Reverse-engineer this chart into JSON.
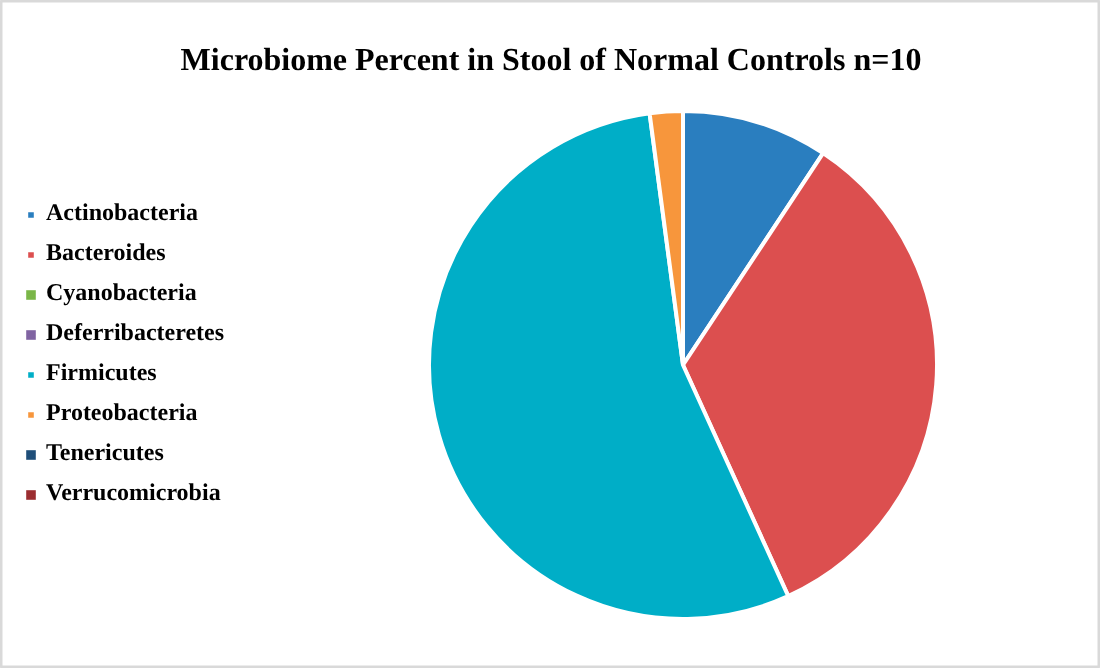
{
  "chart_data": {
    "type": "pie",
    "title": "Microbiome Percent in Stool of Normal Controls n=10",
    "categories": [
      "Actinobacteria",
      "Bacteroides",
      "Cyanobacteria",
      "Deferribacteretes",
      "Firmicutes",
      "Proteobacteria",
      "Tenericutes",
      "Verrucomicrobia"
    ],
    "values": [
      9.3,
      33.9,
      0,
      0,
      54.7,
      2.1,
      0,
      0
    ],
    "colors": [
      "#2a7ebf",
      "#dc4f4f",
      "#7ab648",
      "#8064a2",
      "#00aec7",
      "#f7963c",
      "#1f4e79",
      "#9b2d30"
    ],
    "legend": "left"
  }
}
